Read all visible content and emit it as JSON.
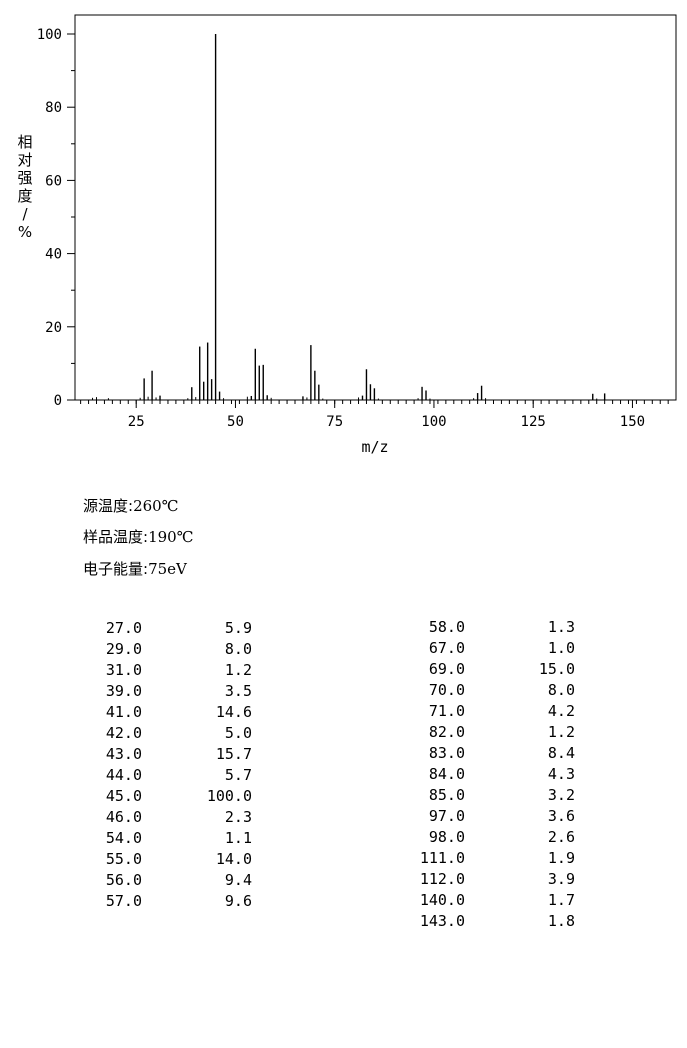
{
  "chart_data": {
    "type": "bar",
    "xlabel": "m/z",
    "ylabel": "相对强度/%",
    "xlim": [
      10,
      162
    ],
    "ylim": [
      0,
      105
    ],
    "x_ticks": [
      25,
      50,
      75,
      100,
      125,
      150
    ],
    "y_ticks": [
      0,
      20,
      40,
      60,
      80,
      100
    ],
    "grid": false,
    "peaks": [
      {
        "mz": 27,
        "intensity": 5.9
      },
      {
        "mz": 29,
        "intensity": 8.0
      },
      {
        "mz": 31,
        "intensity": 1.2
      },
      {
        "mz": 39,
        "intensity": 3.5
      },
      {
        "mz": 41,
        "intensity": 14.6
      },
      {
        "mz": 42,
        "intensity": 5.0
      },
      {
        "mz": 43,
        "intensity": 15.7
      },
      {
        "mz": 44,
        "intensity": 5.7
      },
      {
        "mz": 45,
        "intensity": 100.0
      },
      {
        "mz": 46,
        "intensity": 2.3
      },
      {
        "mz": 54,
        "intensity": 1.1
      },
      {
        "mz": 55,
        "intensity": 14.0
      },
      {
        "mz": 56,
        "intensity": 9.4
      },
      {
        "mz": 57,
        "intensity": 9.6
      },
      {
        "mz": 58,
        "intensity": 1.3
      },
      {
        "mz": 67,
        "intensity": 1.0
      },
      {
        "mz": 69,
        "intensity": 15.0
      },
      {
        "mz": 70,
        "intensity": 8.0
      },
      {
        "mz": 71,
        "intensity": 4.2
      },
      {
        "mz": 82,
        "intensity": 1.2
      },
      {
        "mz": 83,
        "intensity": 8.4
      },
      {
        "mz": 84,
        "intensity": 4.3
      },
      {
        "mz": 85,
        "intensity": 3.2
      },
      {
        "mz": 97,
        "intensity": 3.6
      },
      {
        "mz": 98,
        "intensity": 2.6
      },
      {
        "mz": 111,
        "intensity": 1.9
      },
      {
        "mz": 112,
        "intensity": 3.9
      },
      {
        "mz": 140,
        "intensity": 1.7
      },
      {
        "mz": 143,
        "intensity": 1.8
      }
    ],
    "minor_peaks": [
      {
        "mz": 14,
        "intensity": 0.6
      },
      {
        "mz": 15,
        "intensity": 0.8
      },
      {
        "mz": 18,
        "intensity": 0.5
      },
      {
        "mz": 26,
        "intensity": 0.6
      },
      {
        "mz": 28,
        "intensity": 0.9
      },
      {
        "mz": 30,
        "intensity": 0.7
      },
      {
        "mz": 38,
        "intensity": 0.5
      },
      {
        "mz": 40,
        "intensity": 0.8
      },
      {
        "mz": 47,
        "intensity": 0.5
      },
      {
        "mz": 53,
        "intensity": 0.9
      },
      {
        "mz": 59,
        "intensity": 0.6
      },
      {
        "mz": 68,
        "intensity": 0.7
      },
      {
        "mz": 72,
        "intensity": 0.4
      },
      {
        "mz": 81,
        "intensity": 0.7
      },
      {
        "mz": 86,
        "intensity": 0.4
      },
      {
        "mz": 96,
        "intensity": 0.5
      },
      {
        "mz": 99,
        "intensity": 0.4
      },
      {
        "mz": 110,
        "intensity": 0.5
      },
      {
        "mz": 113,
        "intensity": 0.5
      },
      {
        "mz": 141,
        "intensity": 0.4
      }
    ]
  },
  "conditions": {
    "source_temp_label": "源温度:",
    "source_temp_value": "260℃",
    "sample_temp_label": "样品温度:",
    "sample_temp_value": "190℃",
    "energy_label": "电子能量:",
    "energy_value": "75eV"
  },
  "peak_table": {
    "left": [
      [
        "27.0",
        "5.9"
      ],
      [
        "29.0",
        "8.0"
      ],
      [
        "31.0",
        "1.2"
      ],
      [
        "39.0",
        "3.5"
      ],
      [
        "41.0",
        "14.6"
      ],
      [
        "42.0",
        "5.0"
      ],
      [
        "43.0",
        "15.7"
      ],
      [
        "44.0",
        "5.7"
      ],
      [
        "45.0",
        "100.0"
      ],
      [
        "46.0",
        "2.3"
      ],
      [
        "54.0",
        "1.1"
      ],
      [
        "55.0",
        "14.0"
      ],
      [
        "56.0",
        "9.4"
      ],
      [
        "57.0",
        "9.6"
      ]
    ],
    "right": [
      [
        "58.0",
        "1.3"
      ],
      [
        "67.0",
        "1.0"
      ],
      [
        "69.0",
        "15.0"
      ],
      [
        "70.0",
        "8.0"
      ],
      [
        "71.0",
        "4.2"
      ],
      [
        "82.0",
        "1.2"
      ],
      [
        "83.0",
        "8.4"
      ],
      [
        "84.0",
        "4.3"
      ],
      [
        "85.0",
        "3.2"
      ],
      [
        "97.0",
        "3.6"
      ],
      [
        "98.0",
        "2.6"
      ],
      [
        "111.0",
        "1.9"
      ],
      [
        "112.0",
        "3.9"
      ],
      [
        "140.0",
        "1.7"
      ],
      [
        "143.0",
        "1.8"
      ]
    ]
  }
}
